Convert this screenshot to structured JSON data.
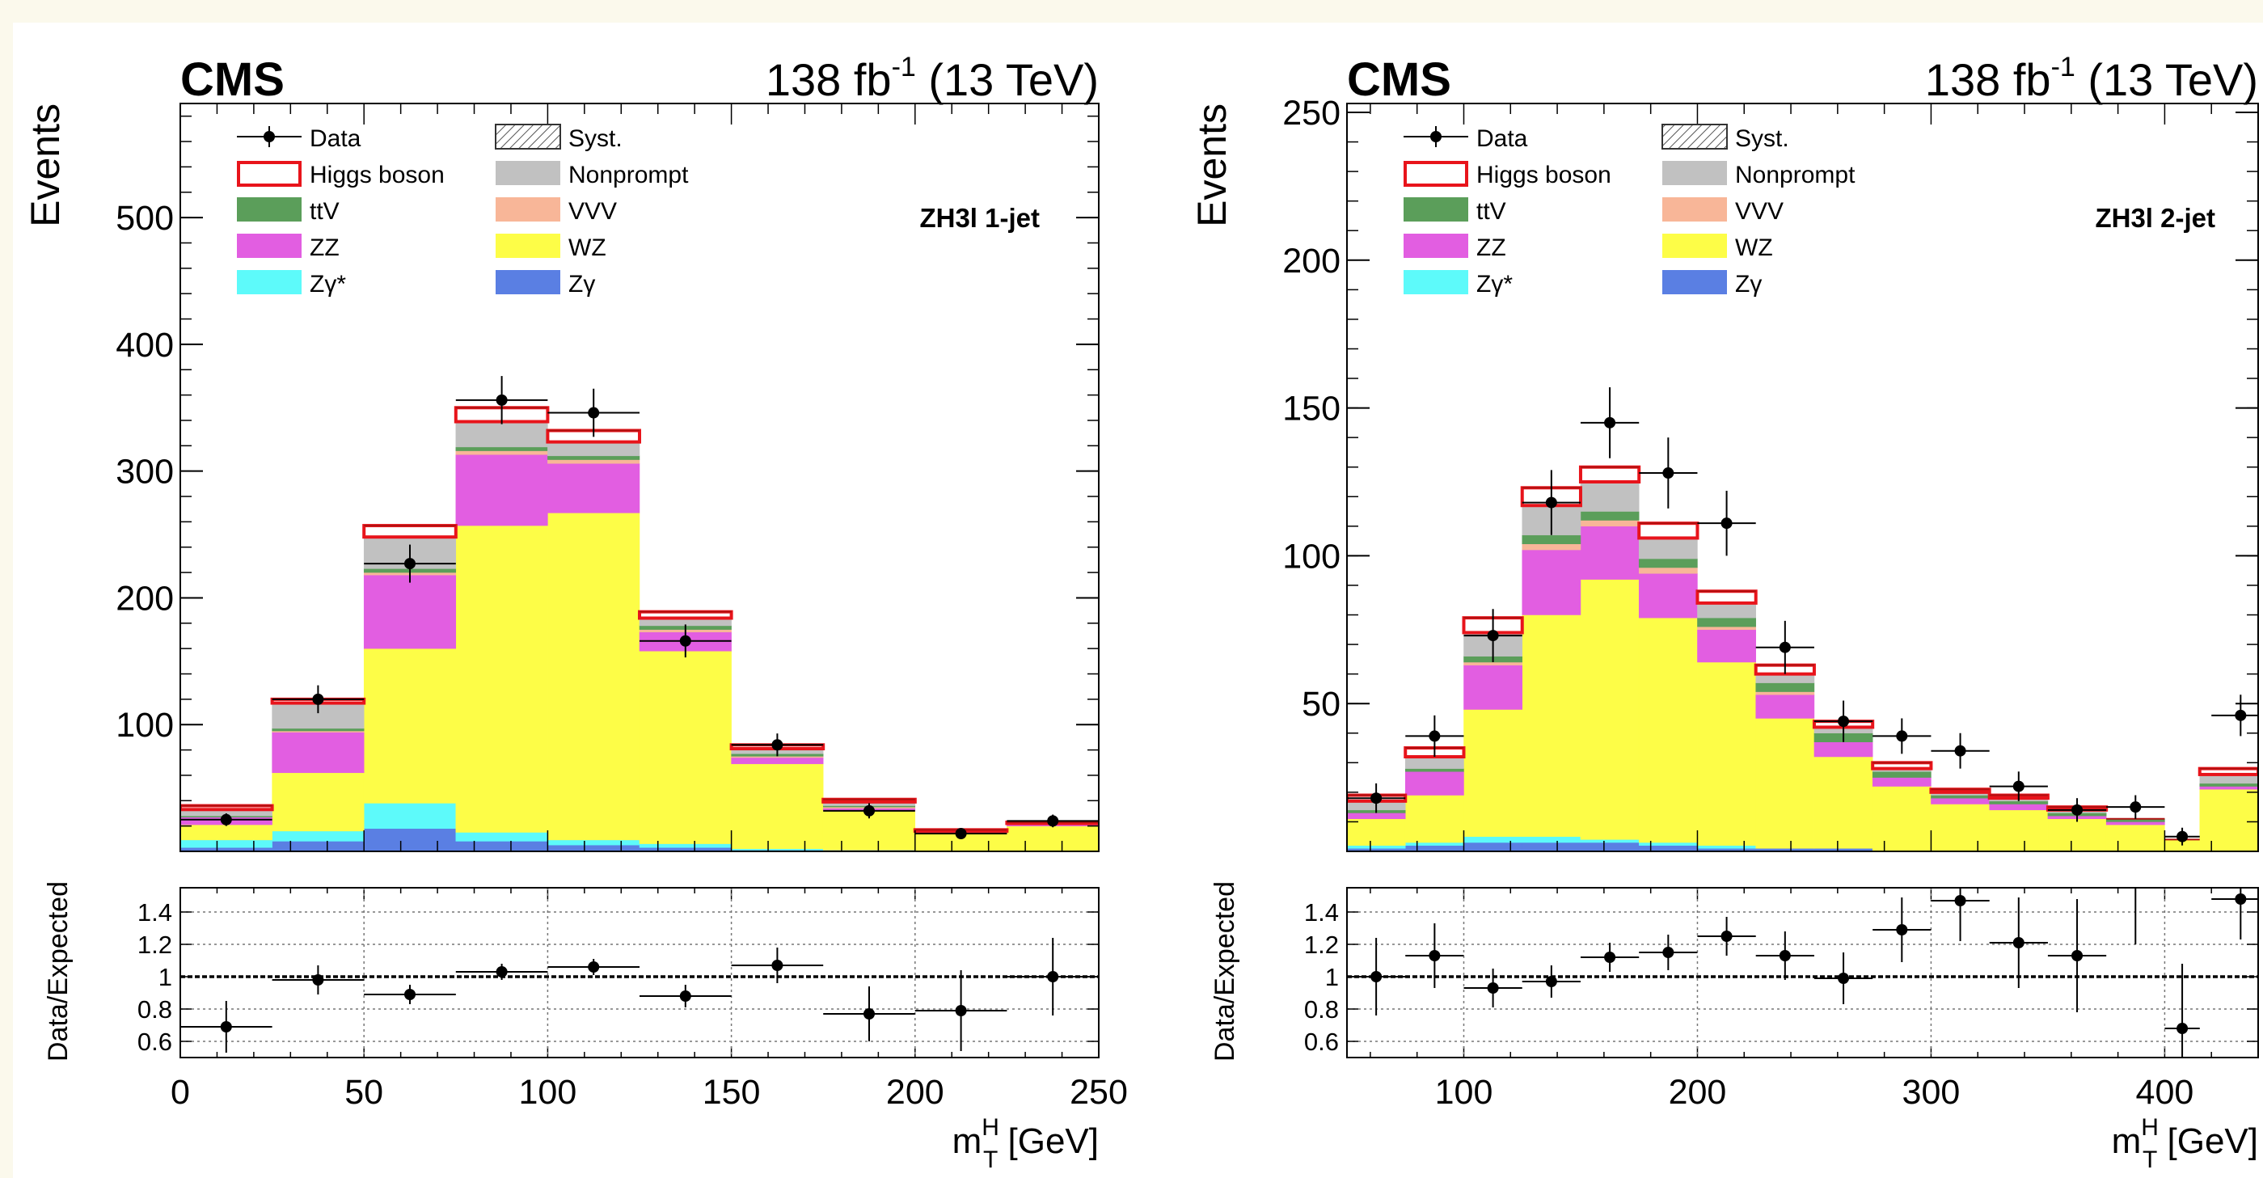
{
  "header": {
    "experiment": "CMS",
    "lumi_value": "138 fb",
    "lumi_exp": "-1",
    "energy": " (13 TeV)"
  },
  "axes": {
    "ytitle": "Events",
    "ratio_ytitle": "Data/Expected",
    "xtitle_base": "m",
    "xtitle_sup": "H",
    "xtitle_sub": "T",
    "xtitle_unit": " [GeV]"
  },
  "legend": [
    {
      "label": "Data",
      "kind": "data"
    },
    {
      "label": "Syst.",
      "kind": "hatch"
    },
    {
      "label": "Higgs boson",
      "kind": "line",
      "color": "#e8141b"
    },
    {
      "label": "Nonprompt",
      "kind": "box",
      "color": "#c1c1c1"
    },
    {
      "label": "ttV",
      "kind": "box",
      "color": "#5b9e5a"
    },
    {
      "label": "VVV",
      "kind": "box",
      "color": "#f8b698"
    },
    {
      "label": "ZZ",
      "kind": "box",
      "color": "#e25ee1"
    },
    {
      "label": "WZ",
      "kind": "box",
      "color": "#fdfd47"
    },
    {
      "label": "Zγ*",
      "kind": "box",
      "color": "#5dfafa"
    },
    {
      "label": "Zγ",
      "kind": "box",
      "color": "#5a7fe3"
    }
  ],
  "chart_data": [
    {
      "type": "bar",
      "category_label": "ZH3l 1-jet",
      "xlabel": "m_T^H [GeV]",
      "ylabel": "Events",
      "xlim": [
        0,
        250
      ],
      "ylim": [
        0,
        590
      ],
      "yticks": [
        100,
        200,
        300,
        400,
        500
      ],
      "xticks": [
        0,
        50,
        100,
        150,
        200,
        250
      ],
      "bin_edges": [
        0,
        25,
        50,
        75,
        100,
        125,
        150,
        175,
        200,
        225,
        250
      ],
      "stack": [
        {
          "name": "Zγ",
          "color": "#5a7fe3",
          "values": [
            3,
            8,
            18,
            8,
            5,
            3,
            1,
            1,
            0,
            0
          ]
        },
        {
          "name": "Zγ*",
          "color": "#5dfafa",
          "values": [
            6,
            8,
            20,
            7,
            4,
            3,
            1,
            0,
            0,
            0
          ]
        },
        {
          "name": "WZ",
          "color": "#fdfd47",
          "values": [
            12,
            46,
            122,
            242,
            258,
            152,
            67,
            31,
            14,
            20
          ]
        },
        {
          "name": "ZZ",
          "color": "#e25ee1",
          "values": [
            6,
            32,
            58,
            56,
            39,
            15,
            5,
            2,
            1,
            1
          ]
        },
        {
          "name": "VVV",
          "color": "#f8b698",
          "values": [
            0,
            1,
            2,
            3,
            3,
            2,
            1,
            1,
            0,
            0
          ]
        },
        {
          "name": "ttV",
          "color": "#5b9e5a",
          "values": [
            1,
            2,
            3,
            3,
            3,
            3,
            2,
            1,
            0,
            0
          ]
        },
        {
          "name": "Nonprompt",
          "color": "#c1c1c1",
          "values": [
            5,
            20,
            25,
            20,
            11,
            6,
            4,
            3,
            1,
            1
          ]
        },
        {
          "name": "Higgs boson",
          "color": "#e8141b",
          "values": [
            3,
            3,
            9,
            11,
            9,
            5,
            3,
            2,
            1,
            1
          ]
        }
      ],
      "data": {
        "name": "Data",
        "x": [
          12.5,
          37.5,
          62.5,
          87.5,
          112.5,
          137.5,
          162.5,
          187.5,
          212.5,
          237.5
        ],
        "y": [
          25,
          120,
          227,
          356,
          346,
          166,
          84,
          32,
          14,
          24
        ],
        "err": [
          5,
          11,
          15,
          19,
          19,
          13,
          9,
          6,
          4,
          5
        ]
      },
      "ratio": {
        "ylim": [
          0.5,
          1.55
        ],
        "yticks": [
          0.6,
          0.8,
          1,
          1.2,
          1.4
        ],
        "x": [
          12.5,
          37.5,
          62.5,
          87.5,
          112.5,
          137.5,
          162.5,
          187.5,
          212.5,
          237.5
        ],
        "y": [
          0.69,
          0.98,
          0.89,
          1.03,
          1.06,
          0.88,
          1.07,
          0.77,
          0.79,
          1.0
        ],
        "err": [
          0.16,
          0.09,
          0.06,
          0.05,
          0.05,
          0.07,
          0.11,
          0.17,
          0.25,
          0.24
        ]
      },
      "ytick_labels": [
        "100",
        "200",
        "300",
        "400",
        "500"
      ],
      "xtick_labels": [
        "0",
        "50",
        "100",
        "150",
        "200",
        "250"
      ],
      "rtick_labels": [
        "0.6",
        "0.8",
        "1",
        "1.2",
        "1.4"
      ]
    },
    {
      "type": "bar",
      "category_label": "ZH3l 2-jet",
      "xlabel": "m_T^H [GeV]",
      "ylabel": "Events",
      "xlim": [
        50,
        440
      ],
      "ylim": [
        0,
        253
      ],
      "yticks": [
        50,
        100,
        150,
        200,
        250
      ],
      "xticks": [
        100,
        200,
        300,
        400
      ],
      "bin_edges": [
        50,
        75,
        100,
        125,
        150,
        175,
        200,
        225,
        250,
        275,
        300,
        325,
        350,
        375,
        400,
        415,
        440
      ],
      "stack": [
        {
          "name": "Zγ",
          "color": "#5a7fe3",
          "values": [
            1,
            2,
            3,
            3,
            3,
            2,
            1,
            1,
            1,
            0,
            0,
            0,
            0,
            0,
            0,
            0
          ]
        },
        {
          "name": "Zγ*",
          "color": "#5dfafa",
          "values": [
            1,
            1,
            2,
            2,
            1,
            1,
            1,
            0,
            0,
            0,
            0,
            0,
            0,
            0,
            0,
            0
          ]
        },
        {
          "name": "WZ",
          "color": "#fdfd47",
          "values": [
            9,
            16,
            43,
            75,
            88,
            76,
            62,
            44,
            31,
            22,
            16,
            14,
            11,
            9,
            4,
            21
          ]
        },
        {
          "name": "ZZ",
          "color": "#e25ee1",
          "values": [
            2,
            8,
            15,
            22,
            18,
            15,
            11,
            8,
            5,
            3,
            2,
            2,
            1,
            1,
            0,
            1
          ]
        },
        {
          "name": "VVV",
          "color": "#f8b698",
          "values": [
            0,
            0,
            1,
            2,
            2,
            2,
            1,
            1,
            0,
            0,
            0,
            0,
            0,
            0,
            0,
            0
          ]
        },
        {
          "name": "ttV",
          "color": "#5b9e5a",
          "values": [
            1,
            1,
            2,
            3,
            3,
            3,
            3,
            3,
            3,
            2,
            1,
            1,
            1,
            1,
            0,
            1
          ]
        },
        {
          "name": "Nonprompt",
          "color": "#c1c1c1",
          "values": [
            3,
            4,
            8,
            10,
            10,
            7,
            5,
            3,
            2,
            1,
            1,
            1,
            1,
            0,
            0,
            3
          ]
        },
        {
          "name": "Higgs boson",
          "color": "#e8141b",
          "values": [
            2,
            3,
            5,
            6,
            5,
            5,
            4,
            3,
            2,
            2,
            1,
            1,
            1,
            0,
            0,
            2
          ]
        }
      ],
      "data": {
        "name": "Data",
        "x": [
          62.5,
          87.5,
          112.5,
          137.5,
          162.5,
          187.5,
          212.5,
          237.5,
          262.5,
          287.5,
          312.5,
          337.5,
          362.5,
          387.5,
          407.5,
          432.5
        ],
        "y": [
          18,
          39,
          73,
          118,
          145,
          128,
          111,
          69,
          44,
          39,
          34,
          22,
          14,
          15,
          5,
          46
        ],
        "err": [
          5,
          7,
          9,
          11,
          12,
          12,
          11,
          9,
          7,
          6,
          6,
          5,
          4,
          4,
          3,
          7
        ]
      },
      "ratio": {
        "ylim": [
          0.5,
          1.55
        ],
        "yticks": [
          0.6,
          0.8,
          1,
          1.2,
          1.4
        ],
        "x": [
          62.5,
          87.5,
          112.5,
          137.5,
          162.5,
          187.5,
          212.5,
          237.5,
          262.5,
          287.5,
          312.5,
          337.5,
          362.5,
          387.5,
          407.5,
          432.5
        ],
        "y": [
          1.0,
          1.13,
          0.93,
          0.97,
          1.12,
          1.15,
          1.25,
          1.13,
          0.99,
          1.29,
          1.47,
          1.21,
          1.13,
          1.6,
          0.68,
          1.48
        ],
        "err": [
          0.24,
          0.2,
          0.12,
          0.1,
          0.09,
          0.11,
          0.12,
          0.15,
          0.16,
          0.2,
          0.25,
          0.28,
          0.35,
          0.4,
          0.4,
          0.25
        ]
      },
      "ytick_labels": [
        "50",
        "100",
        "150",
        "200",
        "250"
      ],
      "xtick_labels": [
        "100",
        "200",
        "300",
        "400"
      ],
      "rtick_labels": [
        "0.6",
        "0.8",
        "1",
        "1.2",
        "1.4"
      ]
    }
  ]
}
